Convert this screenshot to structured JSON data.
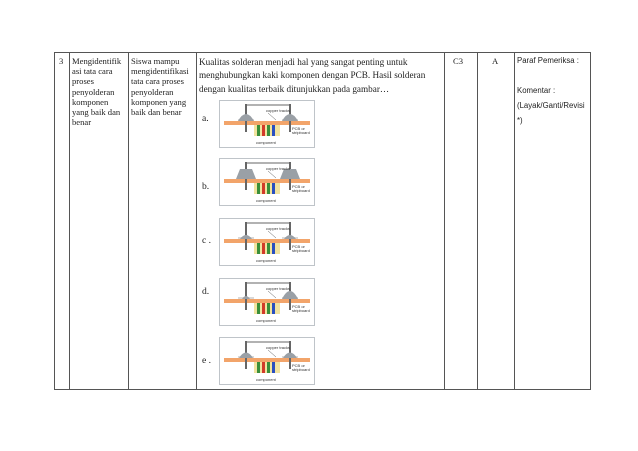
{
  "row": {
    "number": "3",
    "indicator": [
      "Mengidentifik",
      "asi tata cara",
      "proses",
      "penyolderan",
      "komponen",
      "yang baik dan",
      "benar"
    ],
    "objective": [
      "Siswa mampu",
      "mengidentifikasi",
      "tata cara proses",
      "penyolderan",
      "komponen yang",
      "baik dan benar"
    ],
    "question_lines": [
      "Kualitas solderan menjadi hal yang sangat penting untuk",
      "menghubungkan kaki komponen dengan PCB. Hasil solderan",
      "dengan kualitas terbaik ditunjukkan pada gambar…"
    ],
    "options": [
      {
        "label": "a.",
        "variant": "a"
      },
      {
        "label": "b.",
        "variant": "b"
      },
      {
        "label": "c .",
        "variant": "c"
      },
      {
        "label": "d.",
        "variant": "d"
      },
      {
        "label": "e .",
        "variant": "e"
      }
    ],
    "figure_text": {
      "copper": "copper tracks",
      "pcb1": "PCB or",
      "pcb2": "stripboard",
      "component": "component"
    },
    "level": "C3",
    "key": "A",
    "notes": {
      "paraf": "Paraf  Pemeriksa :",
      "komentar": "Komentar :",
      "layak": "(Layak/Ganti/Revisi",
      "close": "*)"
    }
  },
  "colors": {
    "board": "#f2a46a",
    "copper": "#d9d9d9",
    "body": "#f1e3a0"
  }
}
